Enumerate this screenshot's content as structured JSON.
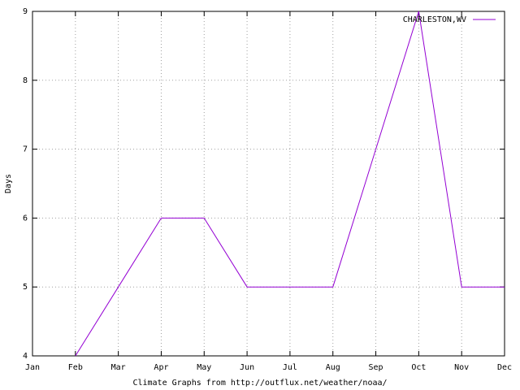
{
  "chart_data": {
    "type": "line",
    "x_label": "Climate Graphs from http://outflux.net/weather/noaa/",
    "y_label": "Days",
    "categories": [
      "Jan",
      "Feb",
      "Mar",
      "Apr",
      "May",
      "Jun",
      "Jul",
      "Aug",
      "Sep",
      "Oct",
      "Nov",
      "Dec"
    ],
    "series": [
      {
        "name": "CHARLESTON,WV",
        "color": "#9400d3",
        "values": [
          null,
          4,
          5,
          6,
          6,
          5,
          5,
          5,
          7,
          9,
          5,
          5
        ]
      }
    ],
    "ylim": [
      4,
      9
    ],
    "yticks": [
      4,
      5,
      6,
      7,
      8,
      9
    ],
    "grid": true,
    "legend": "top-right"
  }
}
